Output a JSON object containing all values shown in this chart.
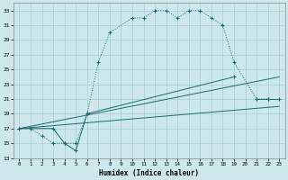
{
  "xlabel": "Humidex (Indice chaleur)",
  "bg_color": "#cce8ec",
  "grid_color": "#aacdd4",
  "line_color": "#1a6b6b",
  "xlim": [
    -0.5,
    23.5
  ],
  "ylim": [
    13,
    34
  ],
  "xticks": [
    0,
    1,
    2,
    3,
    4,
    5,
    6,
    7,
    8,
    9,
    10,
    11,
    12,
    13,
    14,
    15,
    16,
    17,
    18,
    19,
    20,
    21,
    22,
    23
  ],
  "yticks": [
    13,
    15,
    17,
    19,
    21,
    23,
    25,
    27,
    29,
    31,
    33
  ],
  "curve1_x": [
    0,
    1,
    2,
    3,
    4,
    5,
    6,
    7,
    8,
    10,
    11,
    12,
    13,
    14,
    15,
    16,
    17,
    18,
    19,
    21,
    22
  ],
  "curve1_y": [
    17,
    17,
    16,
    15,
    15,
    15,
    19,
    26,
    30,
    32,
    32,
    33,
    33,
    32,
    33,
    33,
    32,
    31,
    26,
    21,
    21
  ],
  "curve2_x": [
    0,
    3,
    4,
    5,
    6,
    19,
    20,
    21,
    22,
    23
  ],
  "curve2_y": [
    17,
    17,
    15,
    14,
    19,
    24,
    null,
    21,
    21,
    21
  ],
  "line3_x": [
    0,
    23
  ],
  "line3_y": [
    17,
    24
  ],
  "line4_x": [
    0,
    23
  ],
  "line4_y": [
    17,
    20
  ]
}
